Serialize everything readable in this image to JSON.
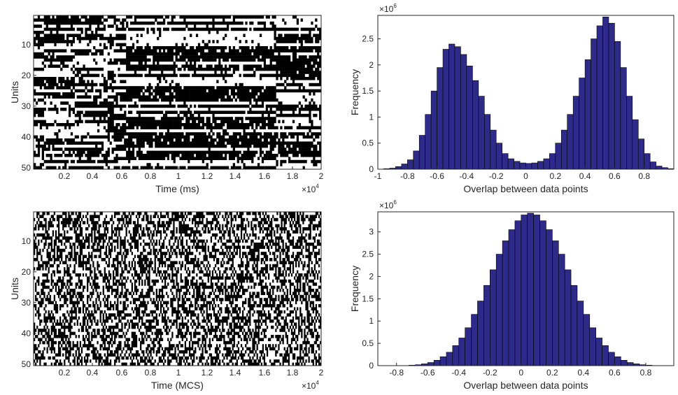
{
  "chart_data": [
    {
      "type": "heatmap",
      "id": "raster-top",
      "xlabel": "Time (ms)",
      "ylabel": "Units",
      "xlim": [
        0,
        2
      ],
      "ylim": [
        50,
        1
      ],
      "x_multiplier_base": "×10",
      "x_multiplier_exp": "4",
      "xticks": [
        "0.2",
        "0.4",
        "0.6",
        "0.8",
        "1",
        "1.2",
        "1.4",
        "1.6",
        "1.8",
        "2"
      ],
      "yticks": [
        "10",
        "20",
        "30",
        "40",
        "50"
      ],
      "units": 50,
      "colors": [
        "#000000",
        "#ffffff"
      ],
      "pattern": "structured"
    },
    {
      "type": "bar",
      "id": "hist-top",
      "xlabel": "Overlap between data points",
      "ylabel": "Frequency",
      "xlim": [
        -1,
        1
      ],
      "ylim": [
        0,
        2.95
      ],
      "y_multiplier_base": "×10",
      "y_multiplier_exp": "6",
      "xticks": [
        "-1",
        "-0.8",
        "-0.6",
        "-0.4",
        "-0.2",
        "0",
        "0.2",
        "0.4",
        "0.6",
        "0.8"
      ],
      "yticks": [
        "0",
        "0.5",
        "1",
        "1.5",
        "2",
        "2.5"
      ],
      "bin_start": -0.96,
      "bin_width": 0.04,
      "values": [
        0.01,
        0.02,
        0.05,
        0.1,
        0.18,
        0.35,
        0.65,
        1.05,
        1.5,
        1.95,
        2.3,
        2.4,
        2.35,
        2.2,
        1.98,
        1.7,
        1.4,
        1.05,
        0.75,
        0.5,
        0.3,
        0.2,
        0.15,
        0.12,
        0.11,
        0.12,
        0.15,
        0.2,
        0.3,
        0.5,
        0.75,
        1.05,
        1.4,
        1.75,
        2.1,
        2.5,
        2.75,
        2.92,
        2.8,
        2.45,
        1.95,
        1.4,
        0.95,
        0.58,
        0.3,
        0.14,
        0.06,
        0.03,
        0.01
      ],
      "color": "#2e2a8a"
    },
    {
      "type": "heatmap",
      "id": "raster-bottom",
      "xlabel": "Time (MCS)",
      "ylabel": "Units",
      "xlim": [
        0,
        2
      ],
      "ylim": [
        50,
        1
      ],
      "x_multiplier_base": "×10",
      "x_multiplier_exp": "4",
      "xticks": [
        "0.2",
        "0.4",
        "0.6",
        "0.8",
        "1",
        "1.2",
        "1.4",
        "1.6",
        "1.8",
        "2"
      ],
      "yticks": [
        "10",
        "20",
        "30",
        "40",
        "50"
      ],
      "units": 50,
      "colors": [
        "#000000",
        "#ffffff"
      ],
      "pattern": "random"
    },
    {
      "type": "bar",
      "id": "hist-bottom",
      "xlabel": "Overlap between data points",
      "ylabel": "Frequency",
      "xlim": [
        -0.92,
        0.98
      ],
      "ylim": [
        0,
        3.45
      ],
      "y_multiplier_base": "×10",
      "y_multiplier_exp": "6",
      "xticks": [
        "-0.8",
        "-0.6",
        "-0.4",
        "-0.2",
        "0",
        "0.2",
        "0.4",
        "0.6",
        "0.8"
      ],
      "yticks": [
        "0",
        "0.5",
        "1",
        "1.5",
        "2",
        "2.5",
        "3"
      ],
      "bin_start": -0.72,
      "bin_width": 0.04,
      "values": [
        0.01,
        0.02,
        0.04,
        0.07,
        0.12,
        0.2,
        0.3,
        0.45,
        0.62,
        0.85,
        1.15,
        1.45,
        1.8,
        2.15,
        2.5,
        2.8,
        3.05,
        3.25,
        3.38,
        3.42,
        3.38,
        3.25,
        3.05,
        2.8,
        2.5,
        2.15,
        1.8,
        1.45,
        1.15,
        0.85,
        0.62,
        0.45,
        0.3,
        0.2,
        0.12,
        0.07,
        0.04,
        0.02,
        0.01
      ],
      "color": "#2e2a8a"
    }
  ]
}
